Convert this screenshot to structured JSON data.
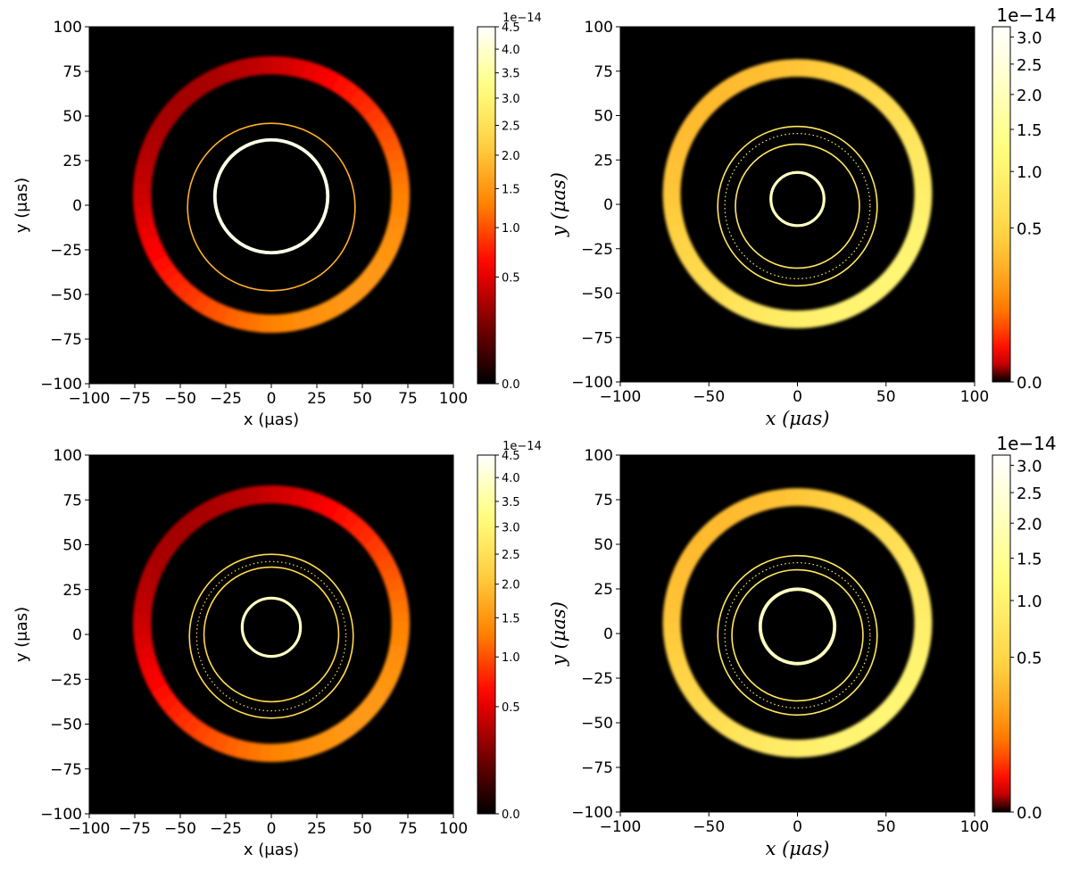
{
  "colormap": {
    "name": "afmhot",
    "stops": [
      "#000000",
      "#7a0000",
      "#ff0000",
      "#ff8000",
      "#ffd040",
      "#ffff80",
      "#ffffff"
    ]
  },
  "chart_data": [
    {
      "type": "heatmap",
      "panel": "top-left",
      "xlabel": "x (μas)",
      "ylabel": "y (μas)",
      "xlim": [
        -100,
        100
      ],
      "ylim": [
        -100,
        100
      ],
      "x_ticks": [
        -100,
        -75,
        -50,
        -25,
        0,
        25,
        50,
        75,
        100
      ],
      "y_ticks": [
        -100,
        -75,
        -50,
        -25,
        0,
        25,
        50,
        75,
        100
      ],
      "colorbar": {
        "scale_label": "1e−14",
        "ticks": [
          "0.0",
          "0.5",
          "1.0",
          "1.5",
          "2.0",
          "2.5",
          "3.0",
          "3.5",
          "4.0",
          "4.5"
        ],
        "range": [
          0,
          4.5
        ]
      },
      "rings": [
        {
          "kind": "primary",
          "cx": 0,
          "cy": 6,
          "r": 71,
          "width": 10,
          "start_level": 0.22,
          "end_level": 0.55
        },
        {
          "kind": "thin",
          "cx": 0,
          "cy": -1,
          "r": 46,
          "width": 1,
          "level": 0.6
        },
        {
          "kind": "photon",
          "cx": 0,
          "cy": 5,
          "r": 31,
          "width": 2.4,
          "level": 0.97
        }
      ]
    },
    {
      "type": "heatmap",
      "panel": "top-right",
      "xlabel": "x (μas)",
      "ylabel": "y (μas)",
      "xlim": [
        -100,
        100
      ],
      "ylim": [
        -100,
        100
      ],
      "x_ticks": [
        -100,
        -50,
        0,
        50,
        100
      ],
      "y_ticks": [
        -100,
        -75,
        -50,
        -25,
        0,
        25,
        50,
        75,
        100
      ],
      "colorbar": {
        "scale_label": "1e−14",
        "ticks": [
          "0.0",
          "0.5",
          "1.0",
          "1.5",
          "2.0",
          "2.5",
          "3.0"
        ],
        "range": [
          0,
          3.2
        ]
      },
      "rings": [
        {
          "kind": "primary",
          "cx": 0,
          "cy": 6,
          "r": 71,
          "width": 10,
          "start_level": 0.62,
          "end_level": 0.8
        },
        {
          "kind": "thin",
          "cx": 0,
          "cy": -1,
          "r": 45,
          "width": 1.2,
          "level": 0.75
        },
        {
          "kind": "dotted",
          "cx": 0,
          "cy": -1,
          "r": 41,
          "width": 1,
          "level": 0.75
        },
        {
          "kind": "thin",
          "cx": 0,
          "cy": -1,
          "r": 35,
          "width": 1.2,
          "level": 0.75
        },
        {
          "kind": "photon",
          "cx": 0,
          "cy": 3,
          "r": 15,
          "width": 2,
          "level": 0.92
        }
      ]
    },
    {
      "type": "heatmap",
      "panel": "bottom-left",
      "xlabel": "x (μas)",
      "ylabel": "y (μas)",
      "xlim": [
        -100,
        100
      ],
      "ylim": [
        -100,
        100
      ],
      "x_ticks": [
        -100,
        -75,
        -50,
        -25,
        0,
        25,
        50,
        75,
        100
      ],
      "y_ticks": [
        -100,
        -75,
        -50,
        -25,
        0,
        25,
        50,
        75,
        100
      ],
      "colorbar": {
        "scale_label": "1e−14",
        "ticks": [
          "0.0",
          "0.5",
          "1.0",
          "1.5",
          "2.0",
          "2.5",
          "3.0",
          "3.5",
          "4.0",
          "4.5"
        ],
        "range": [
          0,
          4.5
        ]
      },
      "rings": [
        {
          "kind": "primary",
          "cx": 0,
          "cy": 6,
          "r": 71,
          "width": 10,
          "start_level": 0.22,
          "end_level": 0.55
        },
        {
          "kind": "thin",
          "cx": 0,
          "cy": -1,
          "r": 45,
          "width": 1.2,
          "level": 0.7
        },
        {
          "kind": "dotted",
          "cx": 0,
          "cy": -1,
          "r": 41,
          "width": 1,
          "level": 0.7
        },
        {
          "kind": "thin",
          "cx": 0,
          "cy": 0,
          "r": 37,
          "width": 1.2,
          "level": 0.7
        },
        {
          "kind": "photon",
          "cx": 0,
          "cy": 4,
          "r": 16,
          "width": 2,
          "level": 0.92
        }
      ]
    },
    {
      "type": "heatmap",
      "panel": "bottom-right",
      "xlabel": "x (μas)",
      "ylabel": "y (μas)",
      "xlim": [
        -100,
        100
      ],
      "ylim": [
        -100,
        100
      ],
      "x_ticks": [
        -100,
        -50,
        0,
        50,
        100
      ],
      "y_ticks": [
        -100,
        -75,
        -50,
        -25,
        0,
        25,
        50,
        75,
        100
      ],
      "colorbar": {
        "scale_label": "1e−14",
        "ticks": [
          "0.0",
          "0.5",
          "1.0",
          "1.5",
          "2.0",
          "2.5",
          "3.0"
        ],
        "range": [
          0,
          3.2
        ]
      },
      "rings": [
        {
          "kind": "primary",
          "cx": 0,
          "cy": 6,
          "r": 71,
          "width": 10,
          "start_level": 0.62,
          "end_level": 0.8
        },
        {
          "kind": "thin",
          "cx": 0,
          "cy": -1,
          "r": 45,
          "width": 1.2,
          "level": 0.75
        },
        {
          "kind": "dotted",
          "cx": 0,
          "cy": -1,
          "r": 41,
          "width": 1,
          "level": 0.75
        },
        {
          "kind": "thin",
          "cx": 0,
          "cy": -1,
          "r": 37,
          "width": 1.2,
          "level": 0.75
        },
        {
          "kind": "photon",
          "cx": 0,
          "cy": 4,
          "r": 21,
          "width": 2.4,
          "level": 0.92
        }
      ]
    }
  ]
}
